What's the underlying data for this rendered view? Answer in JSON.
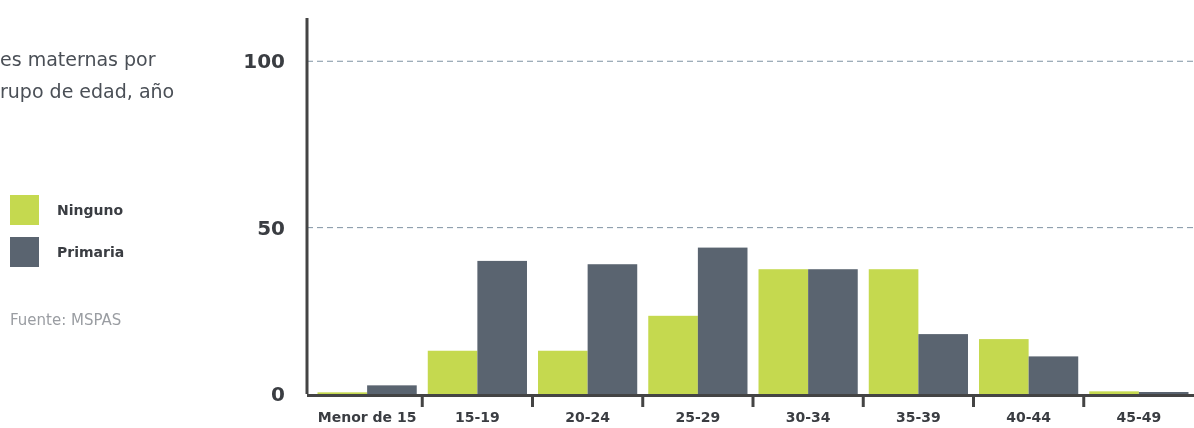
{
  "chart_data": {
    "type": "bar",
    "title": "es maternas por\nrupo de edad, año",
    "categories": [
      "Menor de 15",
      "15-19",
      "20-24",
      "25-29",
      "30-34",
      "35-39",
      "40-44",
      "45-49"
    ],
    "series": [
      {
        "name": "Ninguno",
        "color": "#c5d94f",
        "values": [
          0.5,
          13,
          13,
          23.5,
          37.5,
          37.5,
          16.5,
          0.8
        ]
      },
      {
        "name": "Primaria",
        "color": "#5a6470",
        "values": [
          2.6,
          40,
          39,
          44,
          37.5,
          18,
          11.3,
          0.6
        ]
      }
    ],
    "ylim": [
      0,
      113
    ],
    "yticks": [
      0,
      50,
      100
    ],
    "grid": "y",
    "legend": "left",
    "annotations": [
      "Fuente: MSPAS"
    ]
  }
}
